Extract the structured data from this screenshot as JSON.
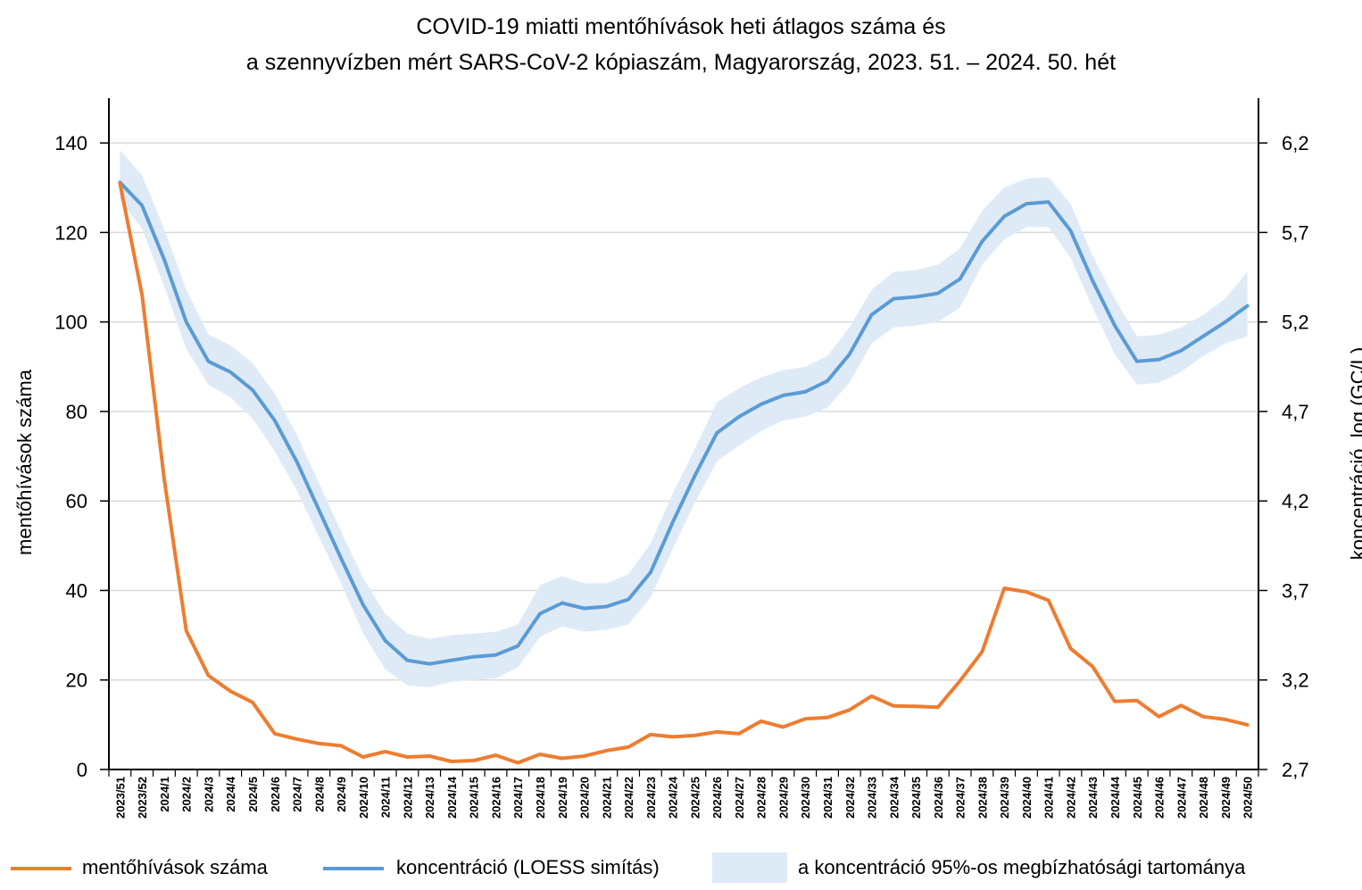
{
  "chart_data": {
    "type": "line",
    "title_lines": [
      "COVID-19 miatti mentőhívások heti átlagos száma és",
      "a szennyvízben mért SARS-CoV-2 kópiaszám, Magyarország, 2023. 51. – 2024. 50. hét"
    ],
    "ylabel": "mentőhívások száma",
    "y2label": "koncentráció,  log (GC/L)",
    "ylim": [
      0,
      150
    ],
    "y_ticks": [
      0,
      20,
      40,
      60,
      80,
      100,
      120,
      140
    ],
    "y_tick_labels": [
      "0",
      "20",
      "40",
      "60",
      "80",
      "100",
      "120",
      "140"
    ],
    "y2lim": [
      2.7,
      6.45
    ],
    "y2_ticks": [
      2.7,
      3.2,
      3.7,
      4.2,
      4.7,
      5.2,
      5.7,
      6.2
    ],
    "y2_tick_labels": [
      "2,7",
      "3,2",
      "3,7",
      "4,2",
      "4,7",
      "5,2",
      "5,7",
      "6,2"
    ],
    "grid": true,
    "legend_position": "bottom",
    "categories": [
      "2023/51",
      "2023/52",
      "2024/1",
      "2024/2",
      "2024/3",
      "2024/4",
      "2024/5",
      "2024/6",
      "2024/7",
      "2024/8",
      "2024/9",
      "2024/10",
      "2024/11",
      "2024/12",
      "2024/13",
      "2024/14",
      "2024/15",
      "2024/16",
      "2024/17",
      "2024/18",
      "2024/19",
      "2024/20",
      "2024/21",
      "2024/22",
      "2024/23",
      "2024/24",
      "2024/25",
      "2024/26",
      "2024/27",
      "2024/28",
      "2024/29",
      "2024/30",
      "2024/31",
      "2024/32",
      "2024/33",
      "2024/34",
      "2024/35",
      "2024/36",
      "2024/37",
      "2024/38",
      "2024/39",
      "2024/40",
      "2024/41",
      "2024/42",
      "2024/43",
      "2024/44",
      "2024/45",
      "2024/46",
      "2024/47",
      "2024/48",
      "2024/49",
      "2024/50"
    ],
    "series": [
      {
        "name": "mentőhívások száma",
        "axis": "left",
        "color": "#ed7d31",
        "values": [
          131,
          106,
          65,
          31,
          21,
          17.5,
          15,
          8,
          6.8,
          5.8,
          5.3,
          2.8,
          4,
          2.8,
          3,
          1.8,
          2,
          3.2,
          1.5,
          3.4,
          2.5,
          3,
          4.2,
          5,
          7.8,
          7.3,
          7.6,
          8.4,
          8,
          10.8,
          9.5,
          11.3,
          11.6,
          13.3,
          16.4,
          14.2,
          14.1,
          13.9,
          19.8,
          26.3,
          40.5,
          39.7,
          37.8,
          27,
          23,
          15.2,
          15.4,
          11.8,
          14.3,
          11.8,
          11.2,
          10
        ]
      },
      {
        "name": "koncentráció (LOESS simítás)",
        "axis": "right",
        "color": "#5b9bd5",
        "values": [
          5.98,
          5.85,
          5.55,
          5.2,
          4.98,
          4.92,
          4.82,
          4.65,
          4.42,
          4.15,
          3.88,
          3.62,
          3.42,
          3.31,
          3.29,
          3.31,
          3.33,
          3.34,
          3.39,
          3.57,
          3.63,
          3.6,
          3.61,
          3.65,
          3.8,
          4.08,
          4.34,
          4.58,
          4.67,
          4.74,
          4.79,
          4.81,
          4.87,
          5.02,
          5.24,
          5.33,
          5.34,
          5.36,
          5.44,
          5.65,
          5.79,
          5.86,
          5.87,
          5.71,
          5.43,
          5.18,
          4.98,
          4.99,
          5.04,
          5.12,
          5.2,
          5.29
        ]
      },
      {
        "name": "a koncentráció 95%-os megbízhatósági tartománya",
        "type": "band",
        "axis": "right",
        "color": "#deebf7",
        "lower": [
          5.88,
          5.72,
          5.4,
          5.05,
          4.85,
          4.78,
          4.66,
          4.48,
          4.26,
          4.0,
          3.74,
          3.46,
          3.26,
          3.17,
          3.16,
          3.19,
          3.2,
          3.21,
          3.27,
          3.44,
          3.5,
          3.47,
          3.48,
          3.51,
          3.66,
          3.93,
          4.19,
          4.42,
          4.51,
          4.59,
          4.65,
          4.67,
          4.72,
          4.86,
          5.08,
          5.17,
          5.18,
          5.2,
          5.28,
          5.52,
          5.66,
          5.73,
          5.73,
          5.56,
          5.28,
          5.02,
          4.85,
          4.86,
          4.92,
          5.01,
          5.08,
          5.12
        ],
        "upper": [
          6.16,
          6.02,
          5.72,
          5.38,
          5.13,
          5.07,
          4.97,
          4.8,
          4.57,
          4.3,
          4.03,
          3.77,
          3.57,
          3.46,
          3.43,
          3.45,
          3.46,
          3.47,
          3.51,
          3.73,
          3.78,
          3.74,
          3.74,
          3.79,
          3.96,
          4.24,
          4.49,
          4.75,
          4.83,
          4.89,
          4.93,
          4.95,
          5.01,
          5.17,
          5.38,
          5.48,
          5.49,
          5.52,
          5.61,
          5.82,
          5.95,
          6.0,
          6.01,
          5.86,
          5.57,
          5.33,
          5.12,
          5.13,
          5.17,
          5.24,
          5.33,
          5.48
        ]
      }
    ]
  }
}
